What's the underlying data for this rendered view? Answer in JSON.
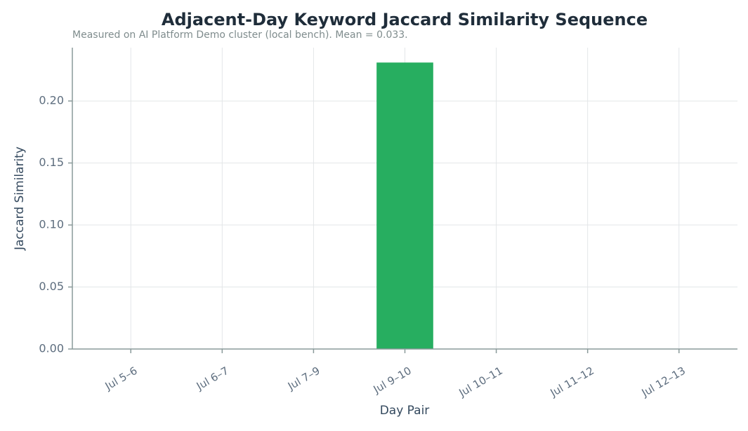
{
  "chart_data": {
    "type": "bar",
    "title": "Adjacent-Day Keyword Jaccard Similarity Sequence",
    "subtitle": "Measured on AI Platform Demo cluster (local bench). Mean = 0.033.",
    "x_label": "Day Pair",
    "y_label": "Jaccard Similarity",
    "categories": [
      "Jul 5–6",
      "Jul 6–7",
      "Jul 7–9",
      "Jul 9–10",
      "Jul 10–11",
      "Jul 11–12",
      "Jul 12–13"
    ],
    "values": [
      0,
      0,
      0,
      0.231,
      0,
      0,
      0
    ],
    "color": "#27ae60",
    "ylim": [
      0,
      0.243
    ],
    "yticks": [
      {
        "value": 0,
        "label": "0.00"
      },
      {
        "value": 0.05,
        "label": "0.05"
      },
      {
        "value": 0.1,
        "label": "0.10"
      },
      {
        "value": 0.15,
        "label": "0.15"
      },
      {
        "value": 0.2,
        "label": "0.20"
      }
    ],
    "grid": true
  }
}
